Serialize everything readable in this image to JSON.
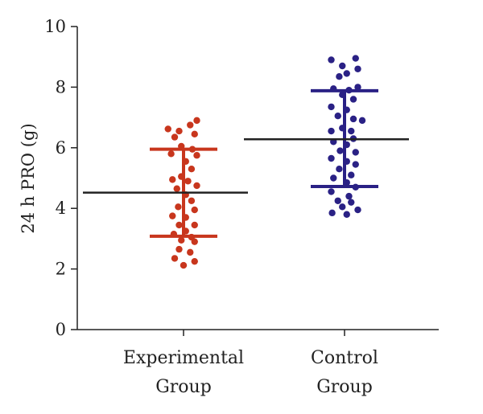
{
  "chart_data": {
    "type": "scatter",
    "ylabel": "24 h PRO (g)",
    "ylim": [
      0,
      10
    ],
    "yticks": [
      0,
      2,
      4,
      6,
      8,
      10
    ],
    "grid": false,
    "categories": [
      {
        "line1": "Experimental",
        "line2": "Group"
      },
      {
        "line1": "Control",
        "line2": "Group"
      }
    ],
    "series": [
      {
        "color": "#c8361d",
        "mean": 4.52,
        "sd_low": 3.08,
        "sd_high": 5.95,
        "points": [
          [
            -0.35,
            6.62
          ],
          [
            -0.1,
            6.55
          ],
          [
            0.15,
            6.75
          ],
          [
            0.3,
            6.9
          ],
          [
            -0.2,
            6.35
          ],
          [
            0.25,
            6.45
          ],
          [
            -0.05,
            6.05
          ],
          [
            0.2,
            5.95
          ],
          [
            0.3,
            5.75
          ],
          [
            -0.28,
            5.8
          ],
          [
            0.05,
            5.55
          ],
          [
            0.18,
            5.3
          ],
          [
            -0.05,
            5.05
          ],
          [
            0.1,
            4.9
          ],
          [
            -0.25,
            4.95
          ],
          [
            0.3,
            4.75
          ],
          [
            -0.15,
            4.65
          ],
          [
            0.05,
            4.45
          ],
          [
            0.18,
            4.25
          ],
          [
            -0.12,
            4.05
          ],
          [
            0.25,
            3.95
          ],
          [
            -0.25,
            3.75
          ],
          [
            0.05,
            3.7
          ],
          [
            -0.1,
            3.45
          ],
          [
            0.25,
            3.45
          ],
          [
            0.05,
            3.25
          ],
          [
            -0.22,
            3.15
          ],
          [
            0.18,
            3.05
          ],
          [
            -0.05,
            2.95
          ],
          [
            0.25,
            2.9
          ],
          [
            -0.1,
            2.65
          ],
          [
            0.15,
            2.55
          ],
          [
            -0.2,
            2.35
          ],
          [
            0.25,
            2.25
          ],
          [
            0.0,
            2.12
          ]
        ]
      },
      {
        "color": "#2a2185",
        "mean": 6.28,
        "sd_low": 4.72,
        "sd_high": 7.88,
        "points": [
          [
            -0.3,
            8.9
          ],
          [
            -0.05,
            8.7
          ],
          [
            0.25,
            8.95
          ],
          [
            0.05,
            8.45
          ],
          [
            0.3,
            8.6
          ],
          [
            -0.12,
            8.35
          ],
          [
            -0.25,
            7.95
          ],
          [
            0.1,
            7.9
          ],
          [
            0.3,
            8.0
          ],
          [
            -0.05,
            7.75
          ],
          [
            0.2,
            7.6
          ],
          [
            -0.3,
            7.35
          ],
          [
            0.05,
            7.25
          ],
          [
            -0.15,
            7.05
          ],
          [
            0.2,
            6.95
          ],
          [
            0.4,
            6.9
          ],
          [
            -0.05,
            6.65
          ],
          [
            -0.3,
            6.55
          ],
          [
            0.15,
            6.55
          ],
          [
            -0.25,
            6.2
          ],
          [
            0.2,
            6.3
          ],
          [
            0.05,
            6.1
          ],
          [
            -0.1,
            5.9
          ],
          [
            0.25,
            5.85
          ],
          [
            0.05,
            5.55
          ],
          [
            0.25,
            5.45
          ],
          [
            -0.3,
            5.65
          ],
          [
            -0.12,
            5.3
          ],
          [
            0.15,
            5.1
          ],
          [
            -0.25,
            5.0
          ],
          [
            0.05,
            4.85
          ],
          [
            0.25,
            4.7
          ],
          [
            -0.3,
            4.55
          ],
          [
            0.1,
            4.4
          ],
          [
            -0.15,
            4.25
          ],
          [
            0.15,
            4.2
          ],
          [
            -0.05,
            4.05
          ],
          [
            0.3,
            3.95
          ],
          [
            -0.28,
            3.85
          ],
          [
            0.05,
            3.8
          ]
        ]
      }
    ]
  }
}
